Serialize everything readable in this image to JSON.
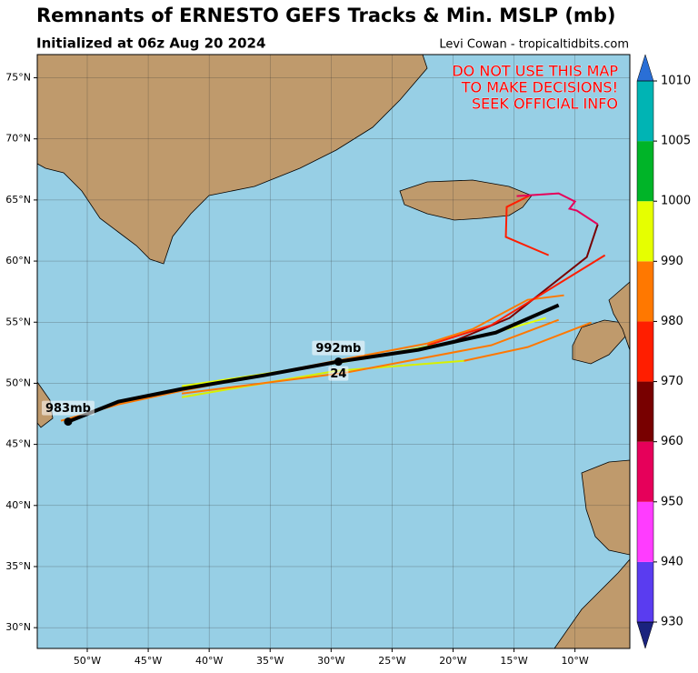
{
  "chart_data": {
    "type": "track-map",
    "title": "Remnants of ERNESTO GEFS Tracks & Min. MSLP (mb)",
    "subtitle": "Initialized at 06z Aug 20 2024",
    "credit": "Levi Cowan - tropicaltidbits.com",
    "warning": [
      "DO NOT USE THIS MAP",
      "TO MAKE DECISIONS!",
      "SEEK OFFICIAL INFO"
    ],
    "xlim": [
      -54.1,
      -5.5
    ],
    "ylim": [
      28.3,
      76.9
    ],
    "xticks": [
      {
        "value": -50,
        "label": "50°W"
      },
      {
        "value": -45,
        "label": "45°W"
      },
      {
        "value": -40,
        "label": "40°W"
      },
      {
        "value": -35,
        "label": "35°W"
      },
      {
        "value": -30,
        "label": "30°W"
      },
      {
        "value": -25,
        "label": "25°W"
      },
      {
        "value": -20,
        "label": "20°W"
      },
      {
        "value": -15,
        "label": "15°W"
      },
      {
        "value": -10,
        "label": "10°W"
      }
    ],
    "yticks": [
      {
        "value": 30,
        "label": "30°N"
      },
      {
        "value": 35,
        "label": "35°N"
      },
      {
        "value": 40,
        "label": "40°N"
      },
      {
        "value": 45,
        "label": "45°N"
      },
      {
        "value": 50,
        "label": "50°N"
      },
      {
        "value": 55,
        "label": "55°N"
      },
      {
        "value": 60,
        "label": "60°N"
      },
      {
        "value": 65,
        "label": "65°N"
      },
      {
        "value": 70,
        "label": "70°N"
      },
      {
        "value": 75,
        "label": "75°N"
      }
    ],
    "grid": true,
    "series": [
      {
        "color": "#ff7800",
        "x": [
          -52.16,
          -47.46,
          -42.24,
          -28.81,
          -22.09,
          -18.36,
          -13.88,
          -10.9
        ],
        "y": [
          46.93,
          48.27,
          49.39,
          51.99,
          53.26,
          54.45,
          56.83,
          57.2
        ]
      },
      {
        "color": "#780000",
        "x": [
          -19.85,
          -15.37,
          -9.03,
          -8.13
        ],
        "y": [
          53.48,
          55.34,
          60.33,
          63.01
        ]
      },
      {
        "color": "#ff1e00",
        "x": [
          -12.16,
          -15.67,
          -15.6,
          -13.66
        ],
        "y": [
          60.48,
          61.97,
          64.43,
          65.39
        ]
      },
      {
        "color": "#e6005a",
        "x": [
          -14.78,
          -11.34,
          -10.0,
          -10.45,
          -9.85,
          -8.13
        ],
        "y": [
          65.32,
          65.54,
          64.87,
          64.28,
          64.13,
          63.01
        ]
      },
      {
        "color": "#ff1e00",
        "x": [
          -22.09,
          -16.87,
          -7.54
        ],
        "y": [
          53.11,
          54.75,
          60.48
        ]
      },
      {
        "color": "#ff7800",
        "x": [
          -19.1,
          -13.88,
          -8.66
        ],
        "y": [
          51.84,
          52.96,
          54.97
        ]
      },
      {
        "color": "#d8f000",
        "x": [
          -42.24,
          -29.55,
          -19.1
        ],
        "y": [
          48.86,
          51.02,
          51.84
        ]
      },
      {
        "color": "#ff7800",
        "x": [
          -42.24,
          -28.81,
          -16.87,
          -11.34
        ],
        "y": [
          49.16,
          50.87,
          53.11,
          55.19
        ]
      },
      {
        "color": "#e6ff00",
        "x": [
          -42.24,
          -28.81,
          -17.61,
          -12.39
        ],
        "y": [
          49.76,
          51.77,
          53.85,
          55.34
        ]
      }
    ],
    "mean_track": {
      "color": "#000000",
      "x": [
        -51.57,
        -47.46,
        -42.24,
        -35.52,
        -29.4,
        -22.84,
        -19.85,
        -16.49,
        -11.34
      ],
      "y": [
        46.86,
        48.49,
        49.54,
        50.65,
        51.77,
        52.74,
        53.41,
        54.15,
        56.39
      ]
    },
    "annotations": [
      {
        "text": "983mb",
        "x": -51.57,
        "y": 46.86
      },
      {
        "text": "992mb",
        "x": -29.4,
        "y": 51.77,
        "below": "24"
      }
    ],
    "colorbar": {
      "levels": [
        930,
        940,
        950,
        960,
        970,
        980,
        990,
        1000,
        1005,
        1010
      ],
      "colors": [
        "#5a3cf0",
        "#ff3cff",
        "#e6005a",
        "#780000",
        "#ff1e00",
        "#ff7800",
        "#e6ff00",
        "#00b428",
        "#00b4b4"
      ],
      "extend_colors": [
        "#1a237e",
        "#2a6fd6"
      ]
    }
  }
}
